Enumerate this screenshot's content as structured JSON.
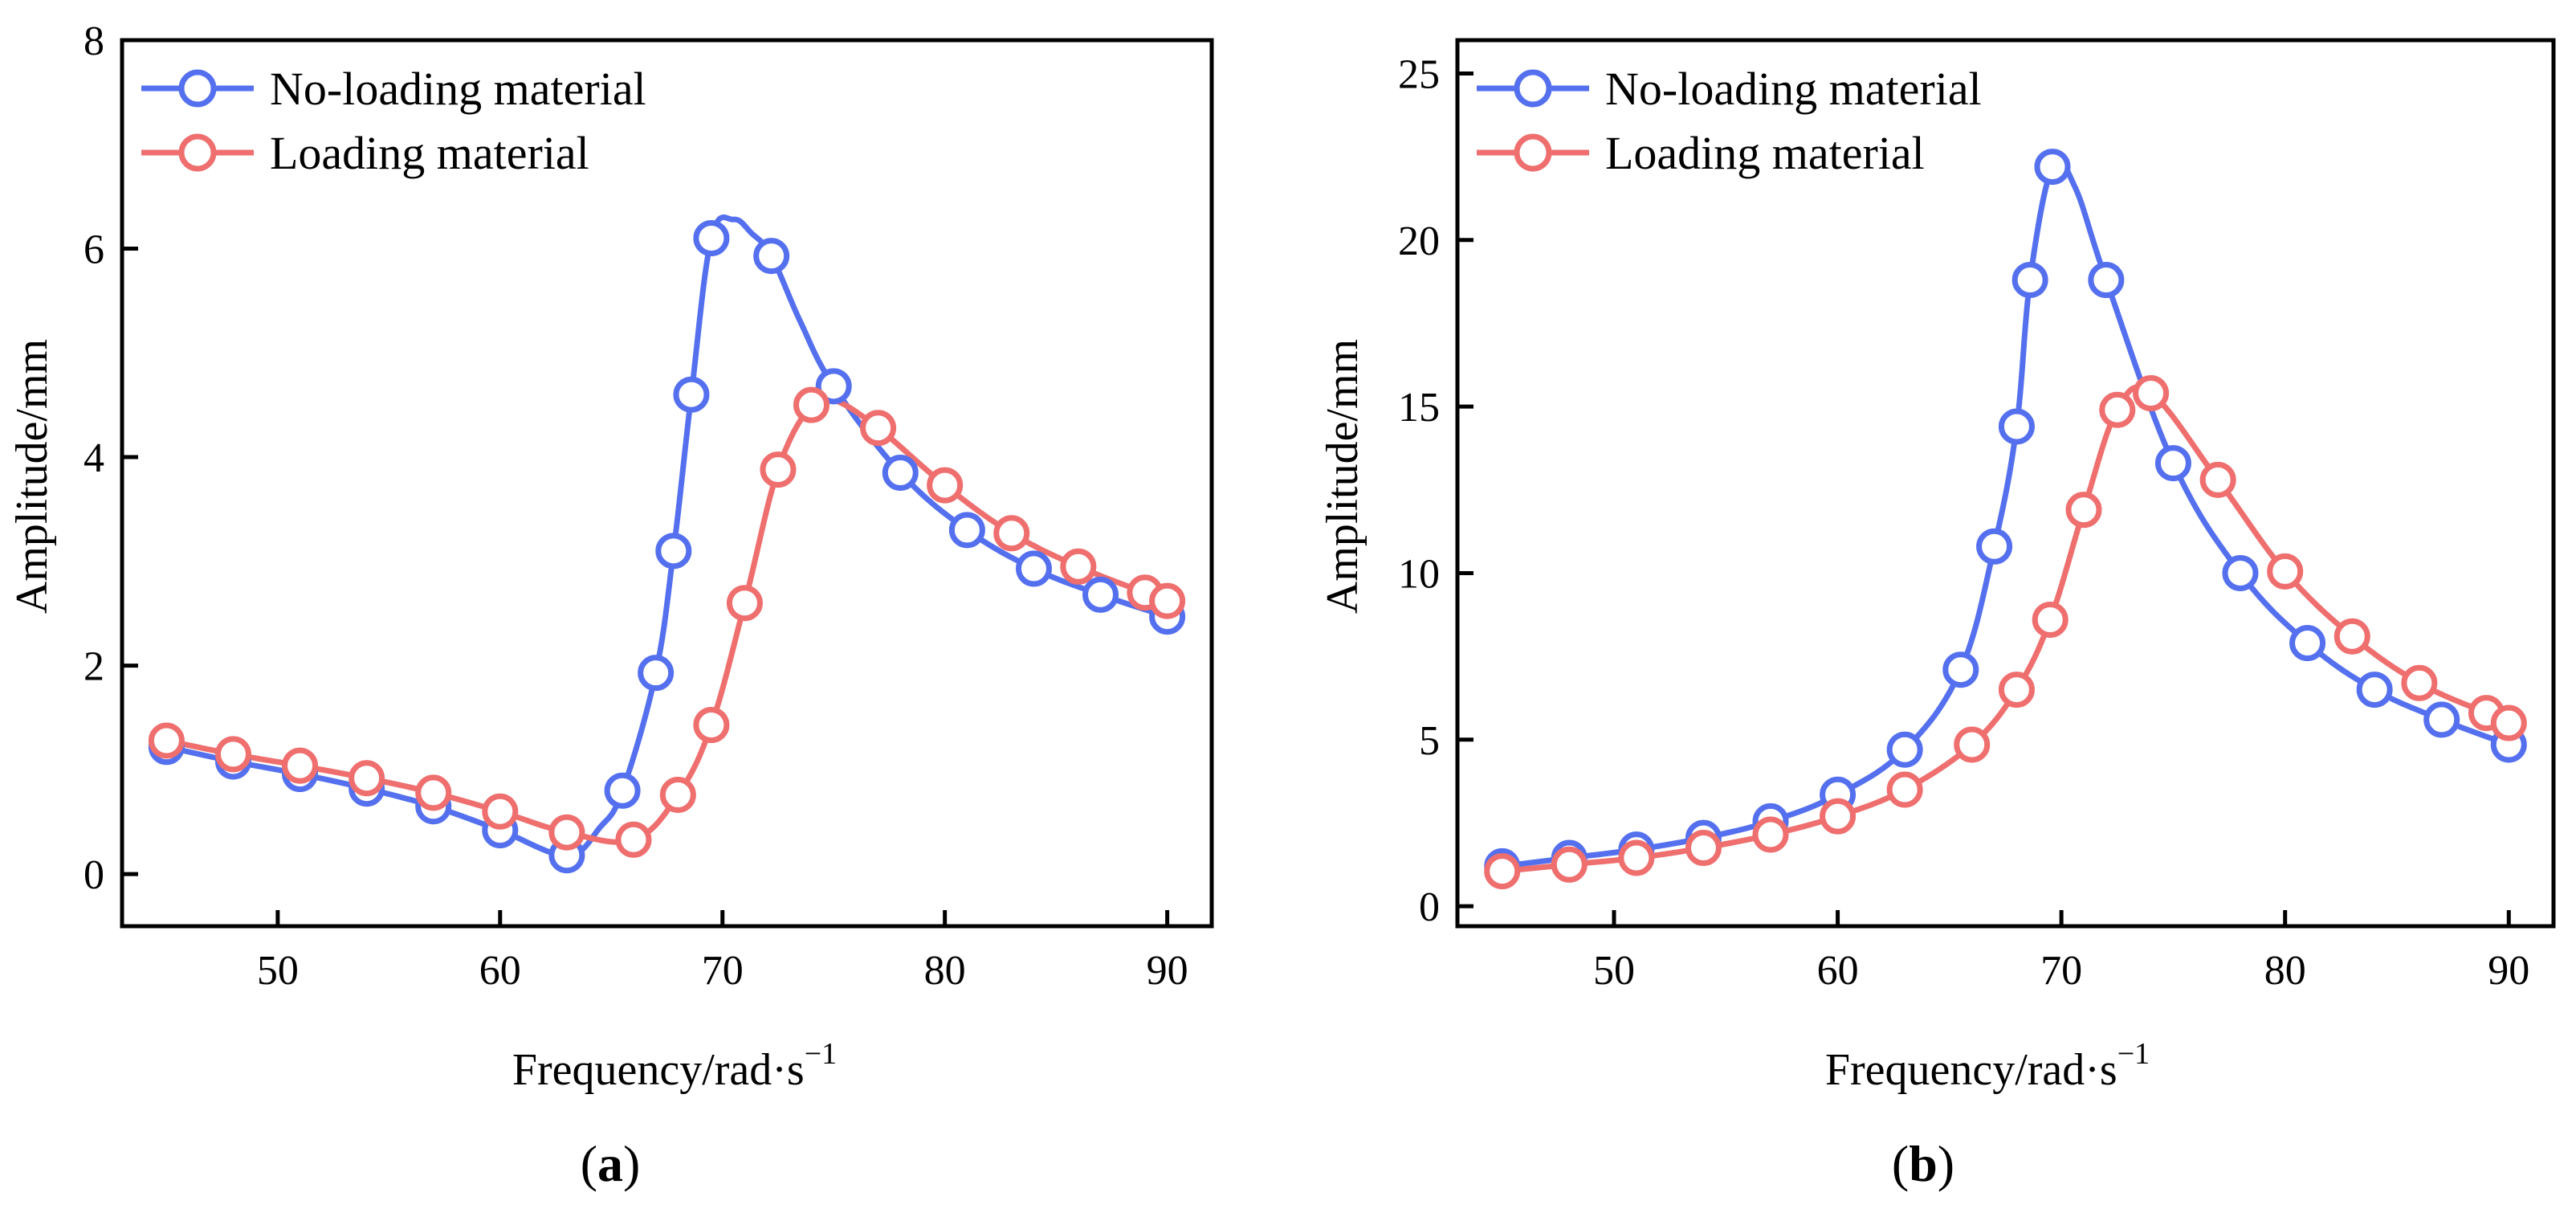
{
  "chart_data": [
    {
      "type": "line",
      "panel_label": "a",
      "xlabel": "Frequency/rad·s",
      "xlabel_sup": "−1",
      "ylabel": "Amplitude/mm",
      "xlim": [
        43,
        92
      ],
      "ylim": [
        -0.5,
        8
      ],
      "xticks": [
        50,
        60,
        70,
        80,
        90
      ],
      "yticks": [
        0,
        2,
        4,
        6,
        8
      ],
      "legend_position": "top-left",
      "series": [
        {
          "name": "No-loading material",
          "color": "#5470ee",
          "x": [
            45,
            48,
            51,
            54,
            57,
            60,
            63,
            65.5,
            67,
            67.8,
            68.6,
            69.5,
            72.2,
            75,
            78,
            81,
            84,
            87,
            90
          ],
          "y": [
            1.22,
            1.08,
            0.96,
            0.82,
            0.65,
            0.42,
            0.18,
            0.8,
            1.93,
            3.1,
            4.6,
            6.1,
            5.93,
            4.68,
            3.85,
            3.3,
            2.93,
            2.68,
            2.47
          ],
          "curve_x": [
            45,
            48,
            51,
            54,
            57,
            60,
            63,
            64.5,
            65.5,
            67,
            67.8,
            68.6,
            69.5,
            70.5,
            71.3,
            72.2,
            73.5,
            75,
            78,
            81,
            84,
            87,
            90
          ],
          "curve_y": [
            1.22,
            1.08,
            0.96,
            0.82,
            0.65,
            0.42,
            0.18,
            0.45,
            0.8,
            1.93,
            3.1,
            4.6,
            6.1,
            6.28,
            6.15,
            5.93,
            5.3,
            4.68,
            3.85,
            3.3,
            2.93,
            2.68,
            2.47
          ]
        },
        {
          "name": "Loading material",
          "color": "#ef6e6e",
          "x": [
            45,
            48,
            51,
            54,
            57,
            60,
            63,
            66,
            68,
            69.5,
            71,
            72.5,
            74,
            77,
            80,
            83,
            86,
            89,
            90
          ],
          "y": [
            1.28,
            1.15,
            1.04,
            0.92,
            0.78,
            0.6,
            0.4,
            0.33,
            0.76,
            1.43,
            2.6,
            3.88,
            4.5,
            4.28,
            3.73,
            3.27,
            2.95,
            2.7,
            2.62
          ],
          "curve_x": [
            45,
            48,
            51,
            54,
            57,
            60,
            63,
            66,
            68,
            69.5,
            71,
            72.5,
            74,
            75,
            77,
            80,
            83,
            86,
            89,
            90
          ],
          "curve_y": [
            1.28,
            1.15,
            1.04,
            0.92,
            0.78,
            0.6,
            0.4,
            0.33,
            0.76,
            1.43,
            2.6,
            3.88,
            4.5,
            4.55,
            4.28,
            3.73,
            3.27,
            2.95,
            2.7,
            2.62
          ]
        }
      ]
    },
    {
      "type": "line",
      "panel_label": "b",
      "xlabel": "Frequency/rad·s",
      "xlabel_sup": "−1",
      "ylabel": "Amplitude/mm",
      "xlim": [
        43,
        92
      ],
      "ylim": [
        -0.6,
        26
      ],
      "xticks": [
        50,
        60,
        70,
        80,
        90
      ],
      "yticks": [
        0,
        5,
        10,
        15,
        20,
        25
      ],
      "legend_position": "top-left",
      "series": [
        {
          "name": "No-loading material",
          "color": "#5470ee",
          "x": [
            45,
            48,
            51,
            54,
            57,
            60,
            63,
            65.5,
            67,
            68,
            68.6,
            69.6,
            72,
            75,
            78,
            81,
            84,
            87,
            90
          ],
          "y": [
            1.2,
            1.45,
            1.7,
            2.05,
            2.55,
            3.35,
            4.7,
            7.1,
            10.8,
            14.4,
            18.8,
            22.2,
            18.8,
            13.3,
            10.0,
            7.9,
            6.5,
            5.6,
            4.85
          ],
          "curve_x": [
            45,
            48,
            51,
            54,
            57,
            60,
            63,
            65.5,
            67,
            68,
            68.6,
            69.6,
            70.6,
            72,
            75,
            78,
            81,
            84,
            87,
            90
          ],
          "curve_y": [
            1.2,
            1.45,
            1.7,
            2.05,
            2.55,
            3.35,
            4.7,
            7.1,
            10.8,
            14.4,
            18.8,
            22.2,
            21.6,
            18.8,
            13.3,
            10.0,
            7.9,
            6.5,
            5.6,
            4.85
          ]
        },
        {
          "name": "Loading material",
          "color": "#ef6e6e",
          "x": [
            45,
            48,
            51,
            54,
            57,
            60,
            63,
            66,
            68,
            69.5,
            71,
            72.5,
            74,
            77,
            80,
            83,
            86,
            89,
            90
          ],
          "y": [
            1.05,
            1.25,
            1.45,
            1.75,
            2.15,
            2.7,
            3.5,
            4.85,
            6.5,
            8.6,
            11.9,
            14.9,
            15.4,
            12.8,
            10.05,
            8.1,
            6.7,
            5.8,
            5.5
          ],
          "curve_x": [
            45,
            48,
            51,
            54,
            57,
            60,
            63,
            66,
            68,
            69.5,
            71,
            72.5,
            74,
            77,
            80,
            83,
            86,
            89,
            90
          ],
          "curve_y": [
            1.05,
            1.25,
            1.45,
            1.75,
            2.15,
            2.7,
            3.5,
            4.85,
            6.5,
            8.6,
            11.9,
            14.9,
            15.4,
            12.8,
            10.05,
            8.1,
            6.7,
            5.8,
            5.5
          ]
        }
      ]
    }
  ]
}
